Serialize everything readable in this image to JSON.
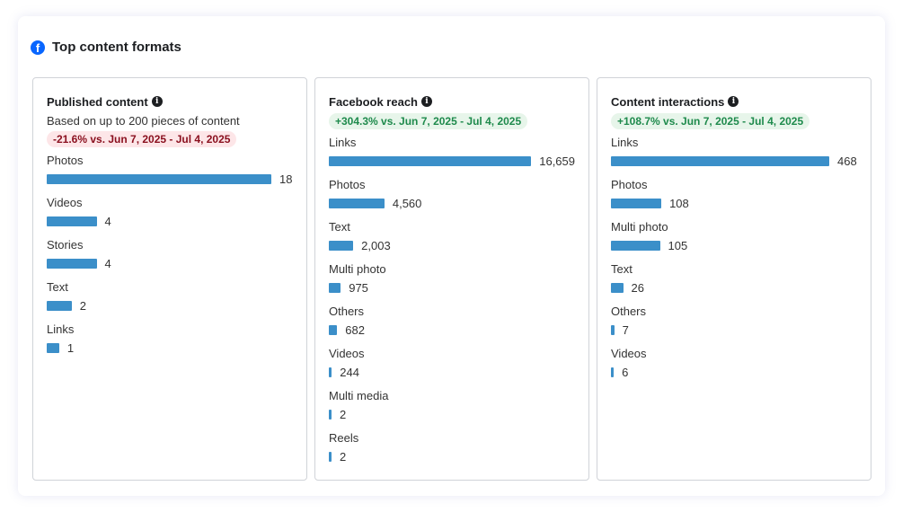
{
  "title": "Top content formats",
  "colors": {
    "bar": "#3b8fc9",
    "brand": "#0866ff",
    "negative": "#8a0f1e",
    "positive": "#1e8a4c"
  },
  "chart_data": [
    {
      "type": "bar",
      "orientation": "horizontal",
      "title": "Published content",
      "subtitle": "Based on up to 200 pieces of content",
      "change": "-21.6% vs. Jun 7, 2025 - Jul 4, 2025",
      "change_direction": "negative",
      "categories": [
        "Photos",
        "Videos",
        "Stories",
        "Text",
        "Links"
      ],
      "values": [
        18,
        4,
        4,
        2,
        1
      ],
      "display": [
        "18",
        "4",
        "4",
        "2",
        "1"
      ]
    },
    {
      "type": "bar",
      "orientation": "horizontal",
      "title": "Facebook reach",
      "change": "+304.3% vs. Jun 7, 2025 - Jul 4, 2025",
      "change_direction": "positive",
      "categories": [
        "Links",
        "Photos",
        "Text",
        "Multi photo",
        "Others",
        "Videos",
        "Multi media",
        "Reels"
      ],
      "values": [
        16659,
        4560,
        2003,
        975,
        682,
        244,
        2,
        2
      ],
      "display": [
        "16,659",
        "4,560",
        "2,003",
        "975",
        "682",
        "244",
        "2",
        "2"
      ]
    },
    {
      "type": "bar",
      "orientation": "horizontal",
      "title": "Content interactions",
      "change": "+108.7% vs. Jun 7, 2025 - Jul 4, 2025",
      "change_direction": "positive",
      "categories": [
        "Links",
        "Photos",
        "Multi photo",
        "Text",
        "Others",
        "Videos"
      ],
      "values": [
        468,
        108,
        105,
        26,
        7,
        6
      ],
      "display": [
        "468",
        "108",
        "105",
        "26",
        "7",
        "6"
      ]
    }
  ]
}
